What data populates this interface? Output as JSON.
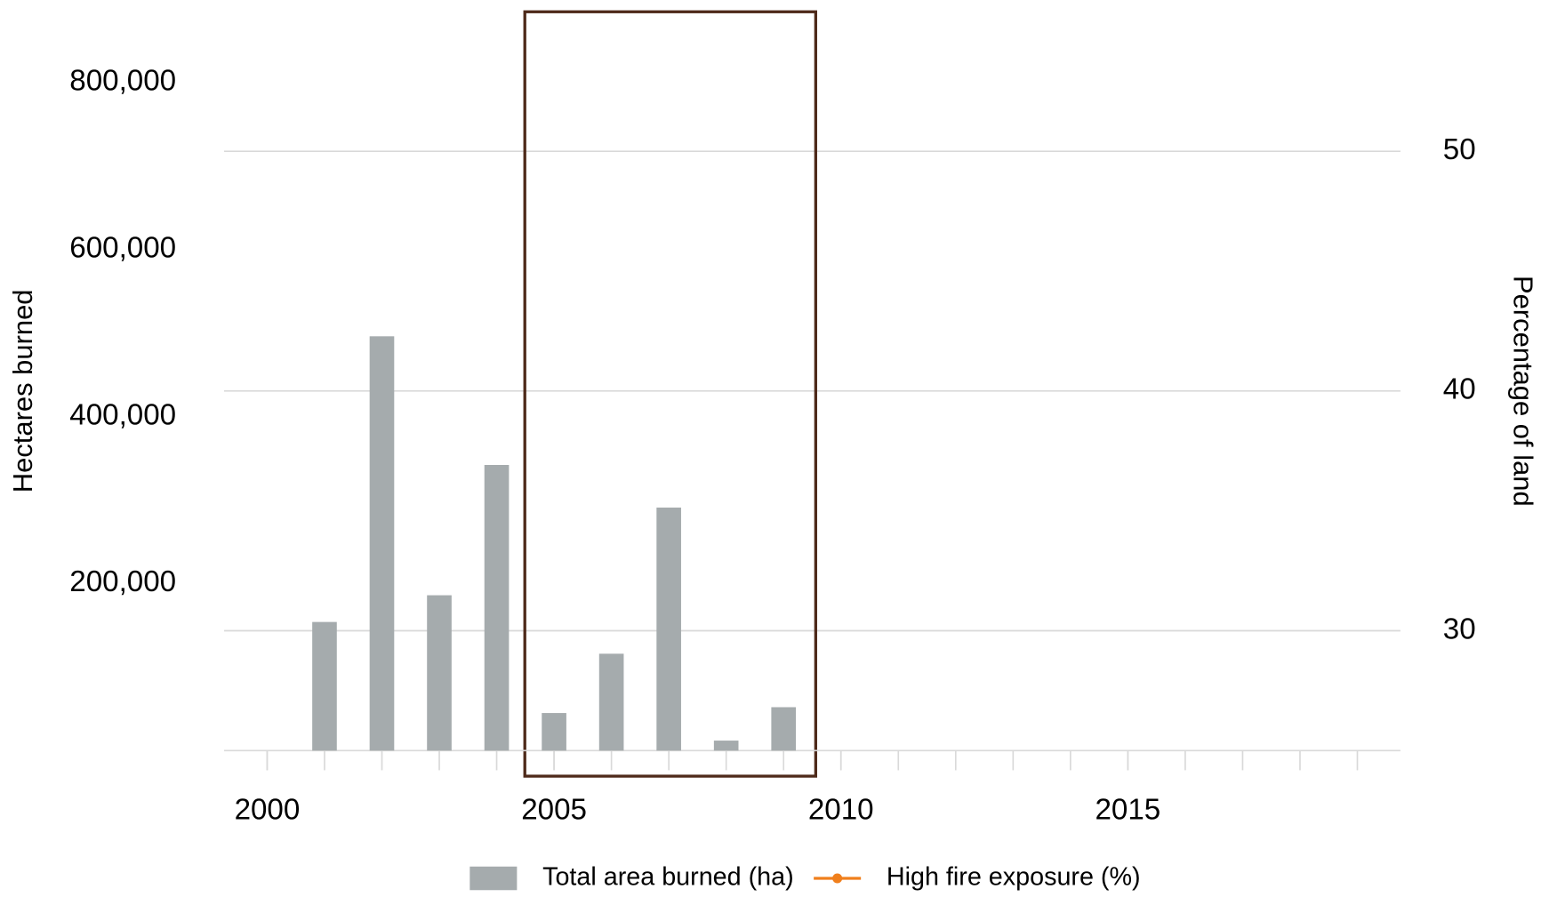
{
  "chart_data": {
    "type": "bar",
    "x": [
      2001,
      2002,
      2003,
      2004,
      2005,
      2006,
      2007,
      2008,
      2009
    ],
    "series": [
      {
        "name": "Total area burned (ha)",
        "color": "#a5abad",
        "values": [
          154000,
          496000,
          186000,
          342000,
          45000,
          116000,
          291000,
          12000,
          52000
        ]
      },
      {
        "name": "High fire exposure (%)",
        "color": "#f07f1c",
        "axis": "y2",
        "values": [
          null,
          null,
          null,
          null,
          null,
          null,
          null,
          null,
          null
        ]
      }
    ],
    "ylabel": "Hectares burned",
    "y2label": "Percentage of land",
    "xlim": [
      1999.25,
      2019.75
    ],
    "xticks": [
      2000,
      2005,
      2010,
      2015
    ],
    "ylim": [
      0,
      861000
    ],
    "yticks": [
      {
        "value": 200000,
        "label": "200,000"
      },
      {
        "value": 400000,
        "label": "400,000"
      },
      {
        "value": 600000,
        "label": "600,000"
      },
      {
        "value": 800000,
        "label": "800,000"
      }
    ],
    "y2lim": [
      25,
      55
    ],
    "y2ticks": [
      30,
      40,
      50
    ],
    "grid": true
  }
}
